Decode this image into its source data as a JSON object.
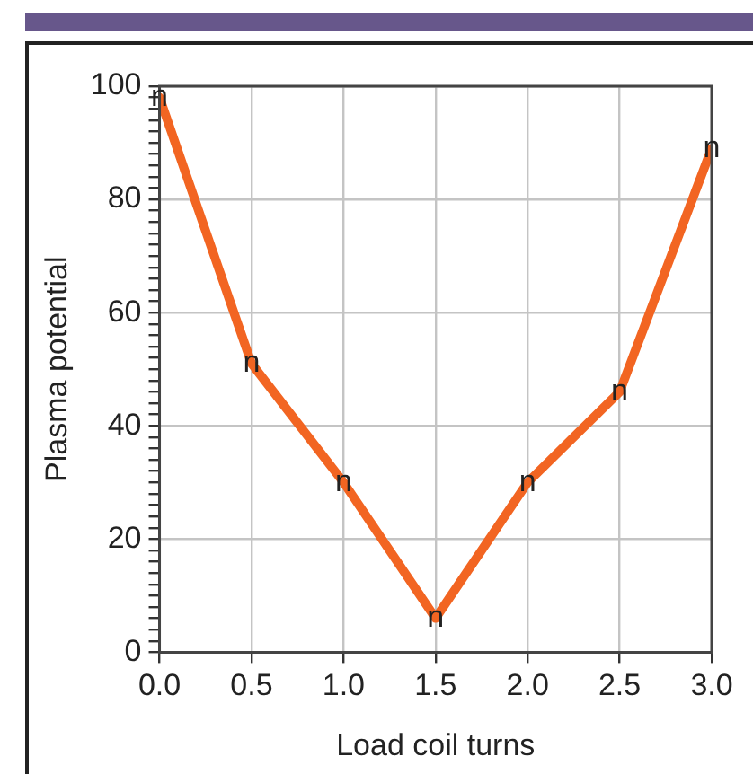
{
  "chart_data": {
    "type": "line",
    "xlabel": "Load coil turns",
    "ylabel": "Plasma potential",
    "x": [
      0,
      0.5,
      1,
      1.5,
      2,
      2.5,
      3
    ],
    "series": [
      {
        "color": "#f26522",
        "values": [
          98,
          51,
          30,
          6,
          30,
          46,
          89
        ]
      }
    ],
    "xlim": [
      0,
      3
    ],
    "xticks": [
      {
        "value": 0,
        "label": "0.0"
      },
      {
        "value": 0.5,
        "label": "0.5"
      },
      {
        "value": 1,
        "label": "1.0"
      },
      {
        "value": 1.5,
        "label": "1.5"
      },
      {
        "value": 2,
        "label": "2.0"
      },
      {
        "value": 2.5,
        "label": "2.5"
      },
      {
        "value": 3,
        "label": "3.0"
      }
    ],
    "ylim": [
      0,
      100
    ],
    "yticks": [
      0,
      {
        "value": 2,
        "label": null
      },
      {
        "value": 4,
        "label": null
      },
      {
        "value": 6,
        "label": null
      },
      {
        "value": 8,
        "label": null
      },
      {
        "value": 10,
        "label": null
      },
      {
        "value": 12,
        "label": null
      },
      {
        "value": 14,
        "label": null
      },
      {
        "value": 16,
        "label": null
      },
      {
        "value": 18,
        "label": null
      },
      20,
      {
        "value": 22,
        "label": null
      },
      {
        "value": 24,
        "label": null
      },
      {
        "value": 26,
        "label": null
      },
      {
        "value": 28,
        "label": null
      },
      {
        "value": 30,
        "label": null
      },
      {
        "value": 32,
        "label": null
      },
      {
        "value": 34,
        "label": null
      },
      {
        "value": 36,
        "label": null
      },
      {
        "value": 38,
        "label": null
      },
      40,
      {
        "value": 42,
        "label": null
      },
      {
        "value": 44,
        "label": null
      },
      {
        "value": 46,
        "label": null
      },
      {
        "value": 48,
        "label": null
      },
      {
        "value": 50,
        "label": null
      },
      {
        "value": 52,
        "label": null
      },
      {
        "value": 54,
        "label": null
      },
      {
        "value": 56,
        "label": null
      },
      {
        "value": 58,
        "label": null
      },
      60,
      {
        "value": 62,
        "label": null
      },
      {
        "value": 64,
        "label": null
      },
      {
        "value": 66,
        "label": null
      },
      {
        "value": 68,
        "label": null
      },
      {
        "value": 70,
        "label": null
      },
      {
        "value": 72,
        "label": null
      },
      {
        "value": 74,
        "label": null
      },
      {
        "value": 76,
        "label": null
      },
      {
        "value": 78,
        "label": null
      },
      80,
      {
        "value": 82,
        "label": null
      },
      {
        "value": 84,
        "label": null
      },
      {
        "value": 86,
        "label": null
      },
      {
        "value": 88,
        "label": null
      },
      {
        "value": 90,
        "label": null
      },
      {
        "value": 92,
        "label": null
      },
      {
        "value": 94,
        "label": null
      },
      {
        "value": 96,
        "label": null
      },
      {
        "value": 98,
        "label": null
      },
      100
    ],
    "grid": true,
    "legend": false,
    "marker": "none",
    "line_style": "solid",
    "annotations": [
      {
        "text": "n",
        "x": 0,
        "y": 98
      },
      {
        "text": "n",
        "x": 0.5,
        "y": 51
      },
      {
        "text": "n",
        "x": 1,
        "y": 30
      },
      {
        "text": "n",
        "x": 1.5,
        "y": 6
      },
      {
        "text": "n",
        "x": 2,
        "y": 30
      },
      {
        "text": "n",
        "x": 2.5,
        "y": 46
      },
      {
        "text": "n",
        "x": 3,
        "y": 89
      }
    ]
  }
}
